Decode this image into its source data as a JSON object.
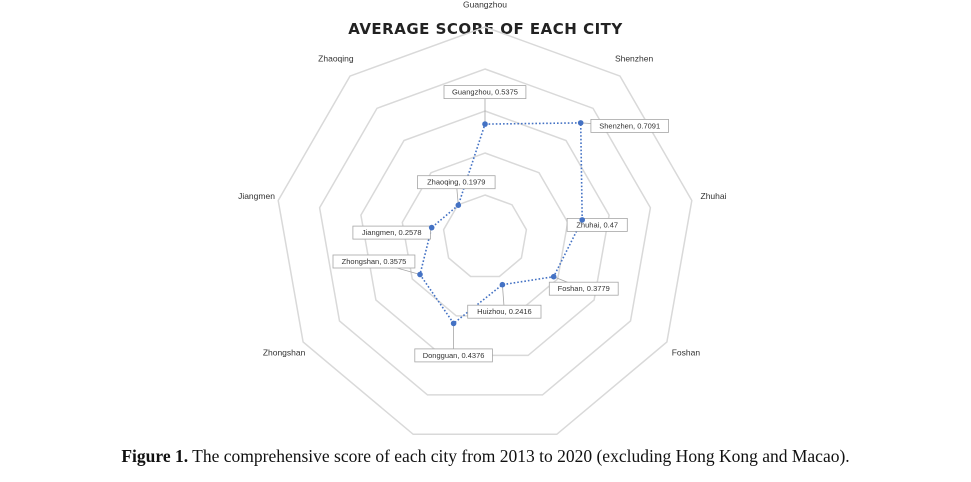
{
  "chart_data": {
    "type": "radar",
    "title": "AVERAGE SCORE OF EACH CITY",
    "categories": [
      "Guangzhou",
      "Shenzhen",
      "Zhuhai",
      "Foshan",
      "Huizhou",
      "Dongguan",
      "Zhongshan",
      "Jiangmen",
      "Zhaoqing"
    ],
    "values": [
      0.5375,
      0.7091,
      0.47,
      0.3779,
      0.2416,
      0.4376,
      0.3575,
      0.2578,
      0.1979
    ],
    "data_labels": [
      "Guangzhou, 0.5375",
      "Shenzhen, 0.7091",
      "Zhuhai, 0.47",
      "Foshan, 0.3779",
      "Huizhou, 0.2416",
      "Dongguan, 0.4376",
      "Zhongshan, 0.3575",
      "Jiangmen, 0.2578",
      "Zhaoqing, 0.1979"
    ],
    "grid": true,
    "rmax": 1,
    "line_style": "dotted",
    "colors": {
      "series": "#4472c4",
      "grid": "#d9d9d9",
      "label_border": "#a6a6a6"
    }
  },
  "caption": {
    "label": "Figure 1.",
    "text": "The comprehensive score of each city from 2013 to 2020 (excluding Hong Kong and Macao)."
  }
}
